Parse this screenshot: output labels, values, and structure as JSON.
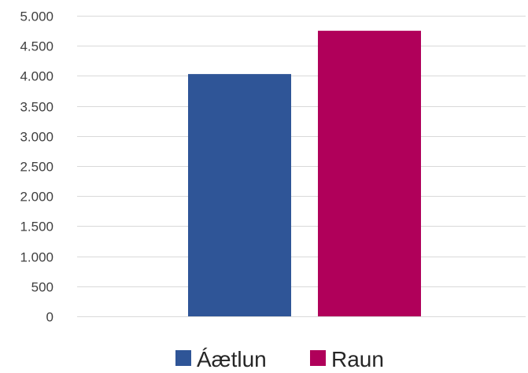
{
  "chart_data": {
    "type": "bar",
    "categories": [
      ""
    ],
    "series": [
      {
        "name": "Áætlun",
        "values": [
          4030
        ],
        "color": "#2f5597"
      },
      {
        "name": "Raun",
        "values": [
          4750
        ],
        "color": "#b0005a"
      }
    ],
    "title": "",
    "xlabel": "",
    "ylabel": "",
    "ylim": [
      0,
      5000
    ],
    "yticks": [
      0,
      500,
      1000,
      1500,
      2000,
      2500,
      3000,
      3500,
      4000,
      4500,
      5000
    ],
    "ytick_labels": [
      "0",
      "500",
      "1.000",
      "1.500",
      "2.000",
      "2.500",
      "3.000",
      "3.500",
      "4.000",
      "4.500",
      "5.000"
    ],
    "grid": true,
    "legend_position": "bottom"
  }
}
